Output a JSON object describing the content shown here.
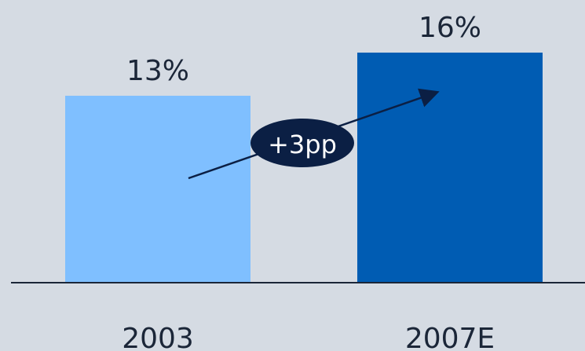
{
  "chart_data": {
    "type": "bar",
    "categories": [
      "2003",
      "2007E"
    ],
    "values": [
      13,
      16
    ],
    "value_labels": [
      "13%",
      "16%"
    ],
    "colors": [
      "#7fbfff",
      "#005cb3"
    ],
    "ylim": [
      0,
      16
    ],
    "grid": false,
    "annotation": {
      "text": "+3pp",
      "fill": "#0b1f44",
      "text_color": "#ffffff"
    }
  }
}
